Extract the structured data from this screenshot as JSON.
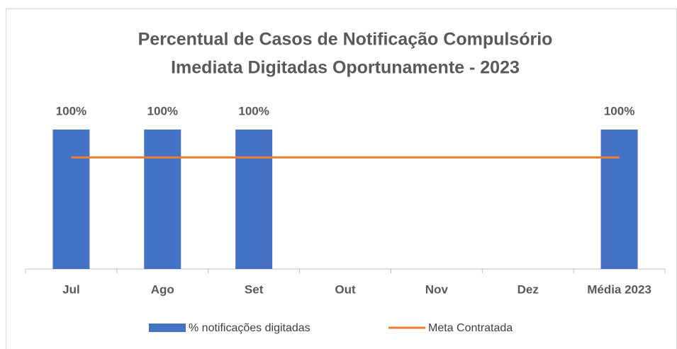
{
  "chart_data": {
    "type": "bar",
    "title": [
      "Percentual de Casos de Notificação  Compulsório",
      "Imediata Digitadas Oportunamente - 2023"
    ],
    "categories": [
      "Jul",
      "Ago",
      "Set",
      "Out",
      "Nov",
      "Dez",
      "Média 2023"
    ],
    "series": [
      {
        "name": "% notificações digitadas",
        "type": "bar",
        "color": "#4472c4",
        "values": [
          100,
          100,
          100,
          null,
          null,
          null,
          100
        ],
        "value_labels": [
          "100%",
          "100%",
          "100%",
          null,
          null,
          null,
          "100%"
        ]
      },
      {
        "name": "Meta Contratada",
        "type": "line",
        "color": "#ed7d31",
        "values": [
          80,
          80,
          80,
          80,
          80,
          80,
          80
        ]
      }
    ],
    "ylim": [
      0,
      100
    ],
    "legend": "bottom"
  }
}
